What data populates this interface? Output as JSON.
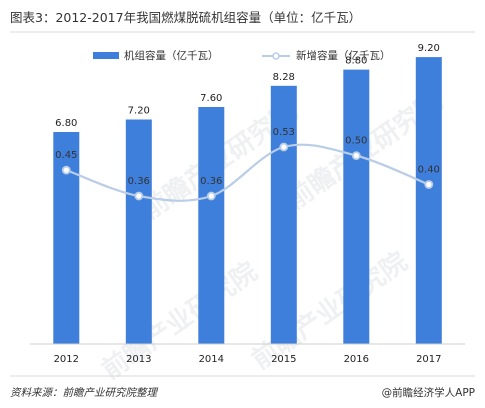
{
  "chart_data": {
    "type": "bar",
    "title": "图表3：2012-2017年我国燃煤脱硫机组容量（单位：亿千瓦）",
    "categories": [
      "2012",
      "2013",
      "2014",
      "2015",
      "2016",
      "2017"
    ],
    "series": [
      {
        "name": "机组容量（亿千瓦）",
        "type": "bar",
        "values": [
          6.8,
          7.2,
          7.6,
          8.28,
          8.8,
          9.2
        ],
        "labels": [
          "6.80",
          "7.20",
          "7.60",
          "8.28",
          "8.80",
          "9.20"
        ]
      },
      {
        "name": "新增容量（亿千瓦）",
        "type": "line",
        "values": [
          0.45,
          0.36,
          0.36,
          0.53,
          0.5,
          0.4
        ],
        "labels": [
          "0.45",
          "0.36",
          "0.36",
          "0.53",
          "0.50",
          "0.40"
        ]
      }
    ],
    "legend": "top",
    "grid": false
  },
  "colors": {
    "bar": "#3f7fdc",
    "line": "#b9cde6",
    "marker_fill": "#ffffff",
    "marker_stroke": "#b9cde6"
  },
  "footer": {
    "source": "资料来源：前瞻产业研究院整理",
    "brand": "@前瞻经济学人APP"
  },
  "watermark": {
    "text": "前瞻产业研究院"
  }
}
